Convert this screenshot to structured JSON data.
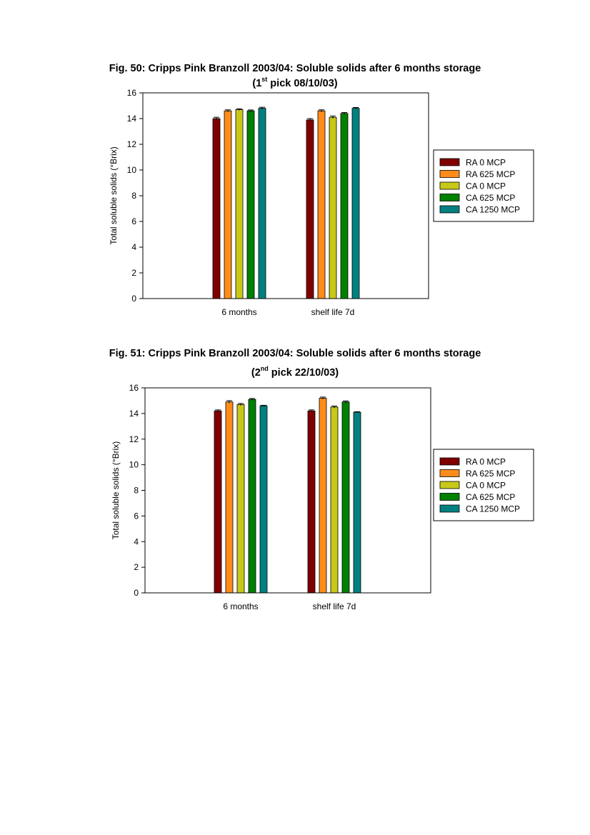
{
  "figures": [
    {
      "title_line1": "Fig. 50: Cripps Pink Branzoll 2003/04: Soluble solids after 6 months storage",
      "title_line2_pre": "(1",
      "title_line2_sup": "st",
      "title_line2_post": " pick 08/10/03)"
    },
    {
      "title_line1": "Fig. 51: Cripps Pink Branzoll 2003/04: Soluble solids  after 6 months storage",
      "title_line2_pre": "(2",
      "title_line2_sup": "nd",
      "title_line2_post": " pick 22/10/03)"
    }
  ],
  "chart_data": [
    {
      "type": "bar",
      "ylabel": "Total soluble solids (°Brix)",
      "xlabel": "",
      "ylim": [
        0,
        16
      ],
      "yticks": [
        "0",
        "2",
        "4",
        "6",
        "8",
        "10",
        "12",
        "14",
        "16"
      ],
      "categories": [
        "6 months",
        "shelf life 7d"
      ],
      "legend_position": "right",
      "error_bars": true,
      "series": [
        {
          "name": "RA 0 MCP",
          "color": "#800000",
          "values": [
            14.0,
            13.9
          ],
          "errors": [
            0.1,
            0.1
          ]
        },
        {
          "name": "RA 625 MCP",
          "color": "#ff8c1a",
          "values": [
            14.6,
            14.6
          ],
          "errors": [
            0.08,
            0.08
          ]
        },
        {
          "name": "CA 0 MCP",
          "color": "#c8c81a",
          "values": [
            14.7,
            14.1
          ],
          "errors": [
            0.06,
            0.1
          ]
        },
        {
          "name": "CA 625 MCP",
          "color": "#008000",
          "values": [
            14.6,
            14.4
          ],
          "errors": [
            0.07,
            0.07
          ]
        },
        {
          "name": "CA 1250 MCP",
          "color": "#008080",
          "values": [
            14.8,
            14.8
          ],
          "errors": [
            0.08,
            0.06
          ]
        }
      ]
    },
    {
      "type": "bar",
      "ylabel": "Total soluble solids (°Brix)",
      "xlabel": "",
      "ylim": [
        0,
        16
      ],
      "yticks": [
        "0",
        "2",
        "4",
        "6",
        "8",
        "10",
        "12",
        "14",
        "16"
      ],
      "categories": [
        "6 months",
        "shelf life 7d"
      ],
      "legend_position": "right",
      "error_bars": true,
      "series": [
        {
          "name": "RA 0 MCP",
          "color": "#800000",
          "values": [
            14.2,
            14.2
          ],
          "errors": [
            0.08,
            0.08
          ]
        },
        {
          "name": "RA 625 MCP",
          "color": "#ff8c1a",
          "values": [
            14.9,
            15.2
          ],
          "errors": [
            0.1,
            0.08
          ]
        },
        {
          "name": "CA 0 MCP",
          "color": "#c8c81a",
          "values": [
            14.7,
            14.5
          ],
          "errors": [
            0.08,
            0.08
          ]
        },
        {
          "name": "CA 625 MCP",
          "color": "#008000",
          "values": [
            15.1,
            14.9
          ],
          "errors": [
            0.07,
            0.08
          ]
        },
        {
          "name": "CA 1250 MCP",
          "color": "#008080",
          "values": [
            14.6,
            14.1
          ],
          "errors": [
            0.04,
            0.04
          ]
        }
      ]
    }
  ]
}
